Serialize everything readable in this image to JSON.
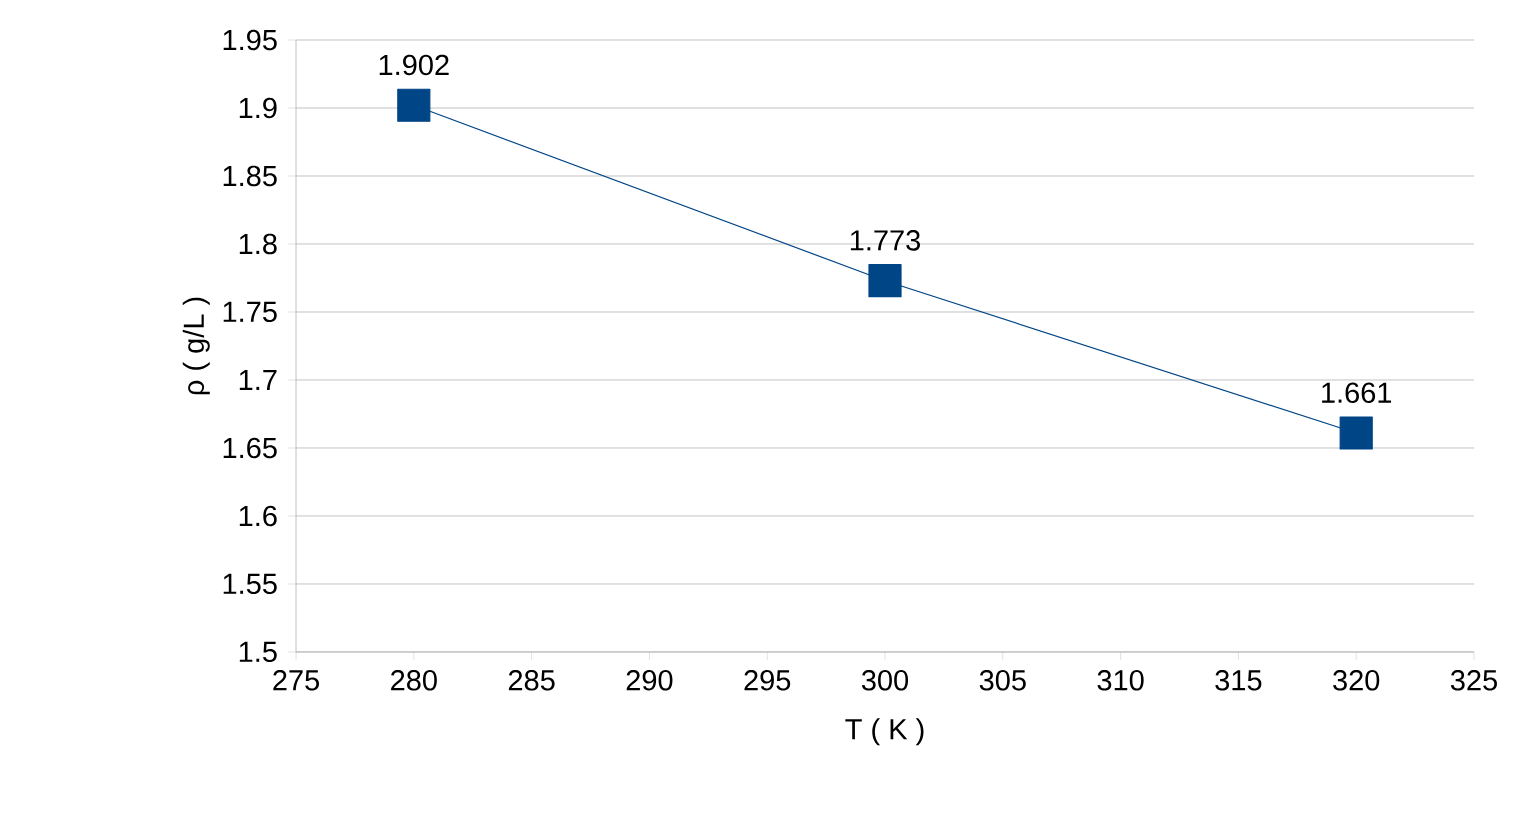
{
  "chart_data": {
    "type": "line",
    "xlabel": "T ( K )",
    "ylabel": "ρ ( g/L )",
    "x": [
      280,
      300,
      320
    ],
    "series": [
      {
        "color": "#004586",
        "values": [
          1.902,
          1.773,
          1.661
        ]
      }
    ],
    "xlim": [
      275,
      325
    ],
    "xticks": [
      275,
      280,
      285,
      290,
      295,
      300,
      305,
      310,
      315,
      320,
      325
    ],
    "ylim": [
      1.5,
      1.95
    ],
    "yticks": [
      1.5,
      1.55,
      1.6,
      1.65,
      1.7,
      1.75,
      1.8,
      1.85,
      1.9,
      1.95
    ],
    "grid": "y",
    "marker": "square",
    "line_style": "solid",
    "data_labels": true
  }
}
